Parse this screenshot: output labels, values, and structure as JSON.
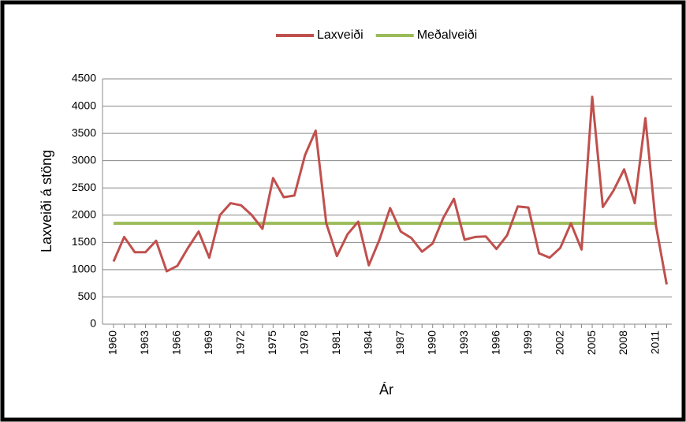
{
  "chart_data": {
    "type": "line",
    "y_label": "Laxveiði á stöng",
    "x_label": "Ár",
    "categories": [
      "1960",
      null,
      null,
      "1963",
      null,
      null,
      "1966",
      null,
      null,
      "1969",
      null,
      null,
      "1972",
      null,
      null,
      "1975",
      null,
      null,
      "1978",
      null,
      null,
      "1981",
      null,
      null,
      "1984",
      null,
      null,
      "1987",
      null,
      null,
      "1990",
      null,
      null,
      "1993",
      null,
      null,
      "1996",
      null,
      null,
      "1999",
      null,
      null,
      "2002",
      null,
      null,
      "2005",
      null,
      null,
      "2008",
      null,
      null,
      "2011",
      null
    ],
    "series": [
      {
        "name": "Laxveiði",
        "color": "#c0504d",
        "values": [
          1150,
          1600,
          1320,
          1320,
          1530,
          970,
          1070,
          1400,
          1700,
          1220,
          2000,
          2220,
          2180,
          2000,
          1750,
          2680,
          2330,
          2360,
          3100,
          3550,
          1850,
          1250,
          1650,
          1880,
          1080,
          1550,
          2130,
          1700,
          1580,
          1330,
          1480,
          1950,
          2300,
          1550,
          1600,
          1610,
          1380,
          1630,
          2160,
          2140,
          1300,
          1220,
          1400,
          1850,
          1370,
          4170,
          2150,
          2450,
          2840,
          2220,
          3780,
          1800,
          730
        ]
      },
      {
        "name": "Meðalveiði",
        "color": "#9bbb59",
        "values": [
          1850,
          1850,
          1850,
          1850,
          1850,
          1850,
          1850,
          1850,
          1850,
          1850,
          1850,
          1850,
          1850,
          1850,
          1850,
          1850,
          1850,
          1850,
          1850,
          1850,
          1850,
          1850,
          1850,
          1850,
          1850,
          1850,
          1850,
          1850,
          1850,
          1850,
          1850,
          1850,
          1850,
          1850,
          1850,
          1850,
          1850,
          1850,
          1850,
          1850,
          1850,
          1850,
          1850,
          1850,
          1850,
          1850,
          1850,
          1850,
          1850,
          1850,
          1850,
          1850,
          null
        ]
      }
    ],
    "ylim": [
      0,
      4500
    ],
    "yticks": [
      0,
      500,
      1000,
      1500,
      2000,
      2500,
      3000,
      3500,
      4000,
      4500
    ],
    "grid": true,
    "legend": "top"
  }
}
